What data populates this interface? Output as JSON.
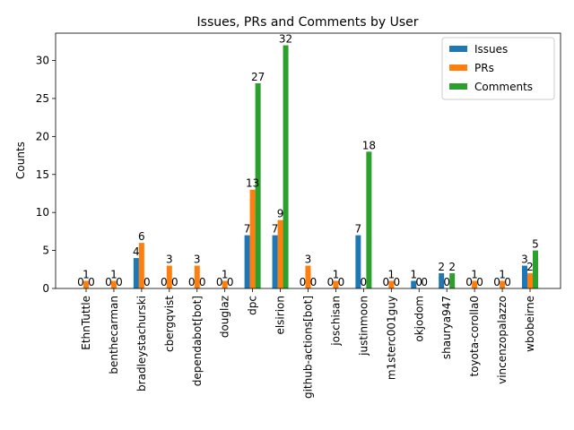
{
  "chart_data": {
    "type": "bar",
    "title": "Issues, PRs and Comments by User",
    "xlabel": "",
    "ylabel": "Counts",
    "ylim": [
      0,
      33.6
    ],
    "yticks": [
      0,
      5,
      10,
      15,
      20,
      25,
      30
    ],
    "grid": false,
    "legend_position": "top-right",
    "categories": [
      "EthnTuttle",
      "benthecarman",
      "bradleystachurski",
      "cbergqvist",
      "dependabot[bot]",
      "douglaz",
      "dpc",
      "elsirion",
      "github-actions[bot]",
      "joschisan",
      "justinmoon",
      "m1sterc001guy",
      "okjodom",
      "shaurya947",
      "toyota-corolla0",
      "vincenzopalazzo",
      "wbobeirne"
    ],
    "series": [
      {
        "name": "Issues",
        "color": "#1f77b4",
        "values": [
          0,
          0,
          4,
          0,
          0,
          0,
          7,
          7,
          0,
          0,
          7,
          0,
          1,
          2,
          0,
          0,
          3
        ]
      },
      {
        "name": "PRs",
        "color": "#ff7f0e",
        "values": [
          1,
          1,
          6,
          3,
          3,
          1,
          13,
          9,
          3,
          1,
          0,
          1,
          0,
          0,
          1,
          1,
          2
        ]
      },
      {
        "name": "Comments",
        "color": "#2ca02c",
        "values": [
          0,
          0,
          0,
          0,
          0,
          0,
          27,
          32,
          0,
          0,
          18,
          0,
          0,
          2,
          0,
          0,
          5
        ]
      }
    ]
  }
}
